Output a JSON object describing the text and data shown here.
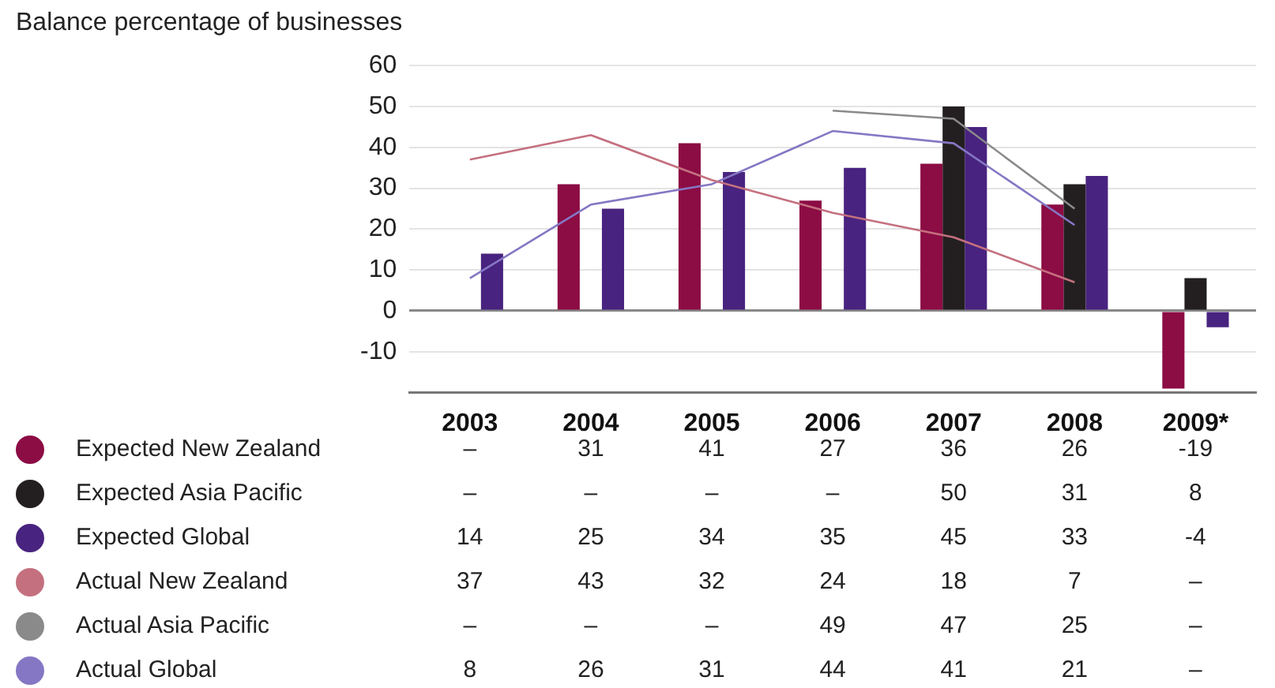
{
  "chart_data": {
    "type": "bar",
    "ylabel": "Balance percentage of businesses",
    "categories": [
      "2003",
      "2004",
      "2005",
      "2006",
      "2007",
      "2008",
      "2009*"
    ],
    "ylim": [
      -20,
      60
    ],
    "yticks": [
      -10,
      0,
      10,
      20,
      30,
      40,
      50,
      60
    ],
    "grid": "y",
    "legend": "bottom",
    "series": [
      {
        "name": "Expected New Zealand",
        "color": "#8c0c44",
        "values": [
          null,
          31,
          41,
          27,
          36,
          26,
          -19
        ],
        "value_labels": [
          "–",
          "31",
          "41",
          "27",
          "36",
          "26",
          "-19"
        ]
      },
      {
        "name": "Expected Asia Pacific",
        "color": "#231f20",
        "values": [
          null,
          null,
          null,
          null,
          50,
          31,
          8
        ],
        "value_labels": [
          "–",
          "–",
          "–",
          "–",
          "50",
          "31",
          "8"
        ]
      },
      {
        "name": "Expected Global",
        "color": "#48237f",
        "values": [
          14,
          25,
          34,
          35,
          45,
          33,
          -4
        ],
        "value_labels": [
          "14",
          "25",
          "34",
          "35",
          "45",
          "33",
          "-4"
        ]
      },
      {
        "name": "Actual New Zealand",
        "type": "line",
        "color": "#c4707f",
        "values": [
          37,
          43,
          32,
          24,
          18,
          7,
          null
        ],
        "value_labels": [
          "37",
          "43",
          "32",
          "24",
          "18",
          "7",
          "–"
        ]
      },
      {
        "name": "Actual Asia Pacific",
        "type": "line",
        "color": "#8a8a8a",
        "values": [
          null,
          null,
          null,
          49,
          47,
          25,
          null
        ],
        "value_labels": [
          "–",
          "–",
          "–",
          "49",
          "47",
          "25",
          "–"
        ]
      },
      {
        "name": "Actual Global",
        "type": "line",
        "color": "#8577c4",
        "values": [
          8,
          26,
          31,
          44,
          41,
          21,
          null
        ],
        "value_labels": [
          "8",
          "26",
          "31",
          "44",
          "41",
          "21",
          "–"
        ]
      }
    ]
  }
}
